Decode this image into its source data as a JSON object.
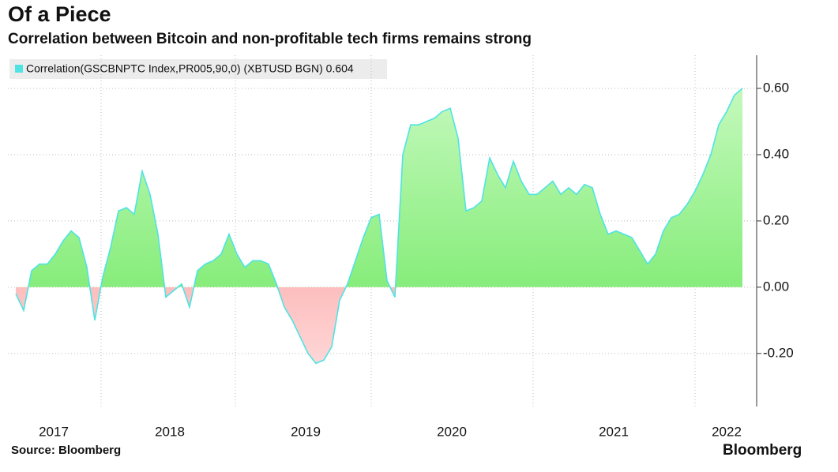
{
  "chart_data": {
    "type": "area",
    "title": "Of a Piece",
    "subtitle": "Correlation between Bitcoin and non-profitable tech firms remains strong",
    "source": "Source: Bloomberg",
    "brand": "Bloomberg",
    "series": [
      {
        "name": "Correlation(GSCBNPTC Index,PR005,90,0) (XBTUSD BGN) 0.604",
        "color": "#4fe3e3",
        "positive_color": "#86ec78",
        "negative_color": "#f98a8a",
        "values": [
          -0.02,
          -0.07,
          0.05,
          0.07,
          0.07,
          0.1,
          0.14,
          0.17,
          0.15,
          0.06,
          -0.1,
          0.03,
          0.12,
          0.23,
          0.24,
          0.22,
          0.35,
          0.28,
          0.16,
          -0.03,
          -0.01,
          0.01,
          -0.06,
          0.05,
          0.07,
          0.08,
          0.1,
          0.16,
          0.1,
          0.06,
          0.08,
          0.08,
          0.07,
          0.01,
          -0.06,
          -0.1,
          -0.15,
          -0.2,
          -0.23,
          -0.22,
          -0.18,
          -0.04,
          0.01,
          0.08,
          0.15,
          0.21,
          0.22,
          0.02,
          -0.03,
          0.4,
          0.49,
          0.49,
          0.5,
          0.51,
          0.53,
          0.54,
          0.45,
          0.23,
          0.24,
          0.26,
          0.39,
          0.34,
          0.3,
          0.38,
          0.32,
          0.28,
          0.28,
          0.3,
          0.32,
          0.28,
          0.3,
          0.28,
          0.31,
          0.3,
          0.22,
          0.16,
          0.17,
          0.16,
          0.15,
          0.11,
          0.07,
          0.1,
          0.17,
          0.21,
          0.22,
          0.25,
          0.29,
          0.34,
          0.4,
          0.49,
          0.53,
          0.58,
          0.6
        ]
      }
    ],
    "xlim": [
      -1,
      93.8
    ],
    "xticks": [
      {
        "value": 4.8,
        "label": "2017"
      },
      {
        "value": 19.5,
        "label": "2018"
      },
      {
        "value": 36.7,
        "label": "2019"
      },
      {
        "value": 55.2,
        "label": "2020"
      },
      {
        "value": 75.7,
        "label": "2021"
      },
      {
        "value": 90,
        "label": "2022"
      }
    ],
    "xgrid": [
      10.8,
      27.8,
      45,
      65.5,
      86
    ],
    "ylim": [
      -0.36,
      0.7
    ],
    "yticks": [
      {
        "value": -0.2,
        "label": "-0.20"
      },
      {
        "value": 0,
        "label": "0.00"
      },
      {
        "value": 0.2,
        "label": "0.20"
      },
      {
        "value": 0.4,
        "label": "0.40"
      },
      {
        "value": 0.6,
        "label": "0.60"
      }
    ],
    "grid": true
  }
}
